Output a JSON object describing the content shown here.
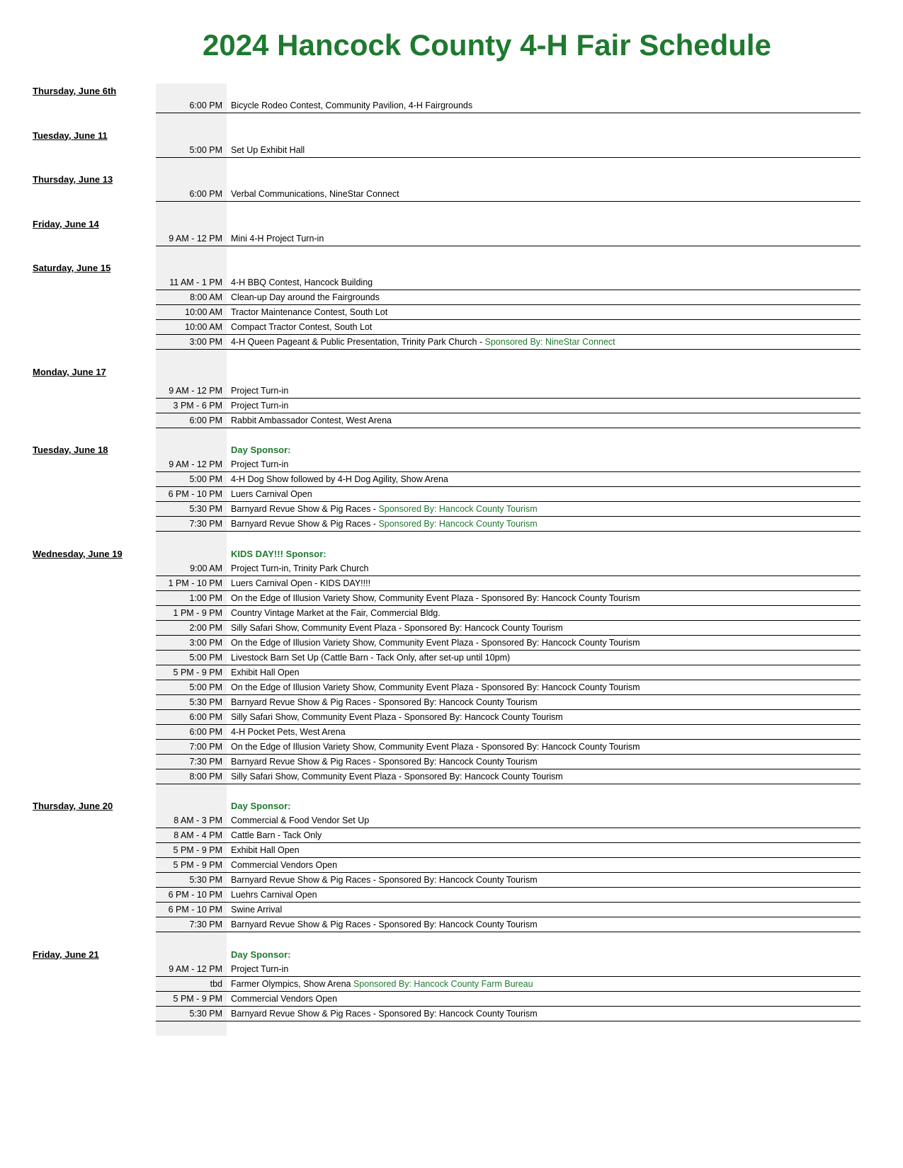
{
  "colors": {
    "title": "#1e7a2f",
    "sponsor": "#1e7a2f",
    "time_bg": "#f0f0f0",
    "rule": "#000000",
    "text": "#000000",
    "bg": "#ffffff"
  },
  "title": "2024 Hancock County 4-H Fair Schedule",
  "days": [
    {
      "label": "Thursday, June 6th",
      "header_desc": "",
      "header_sponsor": false,
      "events": [
        {
          "time": "6:00 PM",
          "desc": "Bicycle Rodeo Contest, Community Pavilion, 4-H Fairgrounds",
          "sponsor": ""
        }
      ]
    },
    {
      "label": "Tuesday, June 11",
      "header_desc": "",
      "header_sponsor": false,
      "events": [
        {
          "time": "5:00 PM",
          "desc": "Set Up Exhibit Hall",
          "sponsor": ""
        }
      ]
    },
    {
      "label": "Thursday, June 13",
      "header_desc": "",
      "header_sponsor": false,
      "events": [
        {
          "time": "6:00 PM",
          "desc": "Verbal Communications, NineStar Connect",
          "sponsor": ""
        }
      ]
    },
    {
      "label": "Friday, June 14",
      "header_desc": "",
      "header_sponsor": false,
      "events": [
        {
          "time": "9 AM - 12 PM",
          "desc": "Mini 4-H Project Turn-in",
          "sponsor": ""
        }
      ]
    },
    {
      "label": "Saturday, June 15",
      "header_desc": "",
      "header_sponsor": false,
      "events": [
        {
          "time": "11 AM - 1 PM",
          "desc": "4-H BBQ Contest, Hancock Building",
          "sponsor": ""
        },
        {
          "time": "8:00 AM",
          "desc": "Clean-up Day around the Fairgrounds",
          "sponsor": ""
        },
        {
          "time": "10:00 AM",
          "desc": "Tractor Maintenance Contest, South Lot",
          "sponsor": ""
        },
        {
          "time": "10:00 AM",
          "desc": "Compact Tractor Contest, South Lot",
          "sponsor": ""
        },
        {
          "time": "3:00 PM",
          "desc": "4-H Queen Pageant & Public Presentation, Trinity Park Church - ",
          "sponsor": "Sponsored By:  NineStar Connect"
        }
      ]
    },
    {
      "label": "Monday, June 17",
      "header_desc": "",
      "header_sponsor": false,
      "blank_after_header": true,
      "events": [
        {
          "time": "9 AM - 12 PM",
          "desc": "Project Turn-in",
          "sponsor": ""
        },
        {
          "time": "3 PM - 6 PM",
          "desc": "Project Turn-in",
          "sponsor": ""
        },
        {
          "time": "6:00 PM",
          "desc": "Rabbit Ambassador Contest, West Arena",
          "sponsor": ""
        }
      ]
    },
    {
      "label": "Tuesday, June 18",
      "header_desc": "Day Sponsor:",
      "header_sponsor": true,
      "events": [
        {
          "time": "9 AM - 12 PM",
          "desc": "Project Turn-in",
          "sponsor": ""
        },
        {
          "time": "5:00 PM",
          "desc": "4-H Dog Show followed by 4-H Dog Agility, Show Arena",
          "sponsor": ""
        },
        {
          "time": "6 PM - 10 PM",
          "desc": "Luers Carnival Open",
          "sponsor": ""
        },
        {
          "time": "5:30 PM",
          "desc": "Barnyard Revue Show & Pig Races - ",
          "sponsor": "Sponsored By: Hancock County Tourism"
        },
        {
          "time": "7:30 PM",
          "desc": "Barnyard Revue Show & Pig Races - ",
          "sponsor": "Sponsored By:  Hancock County Tourism"
        }
      ]
    },
    {
      "label": "Wednesday, June 19",
      "header_desc": "KIDS DAY!!! Sponsor:",
      "header_sponsor": true,
      "events": [
        {
          "time": "9:00 AM",
          "desc": "Project Turn-in, Trinity Park Church",
          "sponsor": ""
        },
        {
          "time": "1 PM - 10 PM",
          "desc": "Luers Carnival Open - KIDS DAY!!!!",
          "sponsor": ""
        },
        {
          "time": "1:00 PM",
          "desc": "On the Edge of Illusion Variety Show, Community Event Plaza - Sponsored By: Hancock County Tourism",
          "sponsor": ""
        },
        {
          "time": "1 PM - 9 PM",
          "desc": "Country Vintage Market at the Fair, Commercial Bldg.",
          "sponsor": ""
        },
        {
          "time": "2:00 PM",
          "desc": "Silly Safari Show, Community Event Plaza - Sponsored By:  Hancock County Tourism",
          "sponsor": ""
        },
        {
          "time": "3:00 PM",
          "desc": "On the Edge of Illusion Variety Show, Community Event Plaza - Sponsored By: Hancock County Tourism",
          "sponsor": ""
        },
        {
          "time": "5:00 PM",
          "desc": "Livestock Barn Set Up (Cattle Barn - Tack Only, after set-up until 10pm)",
          "sponsor": ""
        },
        {
          "time": "5 PM - 9 PM",
          "desc": "Exhibit Hall Open",
          "sponsor": ""
        },
        {
          "time": "5:00 PM",
          "desc": "On the Edge of Illusion Variety Show, Community Event Plaza - Sponsored By: Hancock County Tourism",
          "sponsor": ""
        },
        {
          "time": "5:30 PM",
          "desc": "Barnyard Revue Show & Pig Races - Sponsored By:  Hancock County Tourism",
          "sponsor": ""
        },
        {
          "time": "6:00 PM",
          "desc": "Silly Safari Show, Community Event Plaza - Sponsored By:  Hancock County Tourism",
          "sponsor": ""
        },
        {
          "time": "6:00 PM",
          "desc": "4-H Pocket Pets, West Arena",
          "sponsor": ""
        },
        {
          "time": "7:00 PM",
          "desc": "On the Edge of Illusion Variety Show, Community Event Plaza - Sponsored By: Hancock County Tourism",
          "sponsor": ""
        },
        {
          "time": "7:30 PM",
          "desc": "Barnyard Revue Show & Pig Races - Sponsored By:  Hancock County Tourism",
          "sponsor": ""
        },
        {
          "time": "8:00 PM",
          "desc": "Silly Safari Show, Community Event Plaza - Sponsored By:  Hancock County Tourism",
          "sponsor": ""
        }
      ]
    },
    {
      "label": "Thursday, June 20",
      "header_desc": "Day Sponsor:",
      "header_sponsor": true,
      "events": [
        {
          "time": "8 AM - 3 PM",
          "desc": "Commercial & Food Vendor Set Up",
          "sponsor": ""
        },
        {
          "time": "8 AM - 4 PM",
          "desc": "Cattle Barn - Tack Only",
          "sponsor": ""
        },
        {
          "time": "5 PM - 9 PM",
          "desc": "Exhibit Hall Open",
          "sponsor": ""
        },
        {
          "time": "5 PM - 9 PM",
          "desc": "Commercial Vendors Open",
          "sponsor": ""
        },
        {
          "time": "5:30 PM",
          "desc": "Barnyard Revue Show & Pig Races - Sponsored By:  Hancock County Tourism",
          "sponsor": ""
        },
        {
          "time": "6 PM - 10 PM",
          "desc": "Luehrs Carnival Open",
          "sponsor": ""
        },
        {
          "time": "6 PM - 10 PM",
          "desc": "Swine Arrival",
          "sponsor": ""
        },
        {
          "time": "7:30 PM",
          "desc": "Barnyard Revue Show & Pig Races - Sponsored By:  Hancock County Tourism",
          "sponsor": ""
        }
      ]
    },
    {
      "label": "Friday, June 21",
      "header_desc": "Day Sponsor:",
      "header_sponsor": true,
      "events": [
        {
          "time": "9 AM - 12 PM",
          "desc": "Project Turn-in",
          "sponsor": ""
        },
        {
          "time": "tbd",
          "desc": "Farmer Olympics, Show Arena ",
          "sponsor": "Sponsored By: Hancock County Farm Bureau"
        },
        {
          "time": "5 PM - 9 PM",
          "desc": "Commercial Vendors Open",
          "sponsor": ""
        },
        {
          "time": "5:30 PM",
          "desc": "Barnyard Revue Show & Pig Races - Sponsored By:  Hancock County Tourism",
          "sponsor": ""
        }
      ]
    }
  ]
}
